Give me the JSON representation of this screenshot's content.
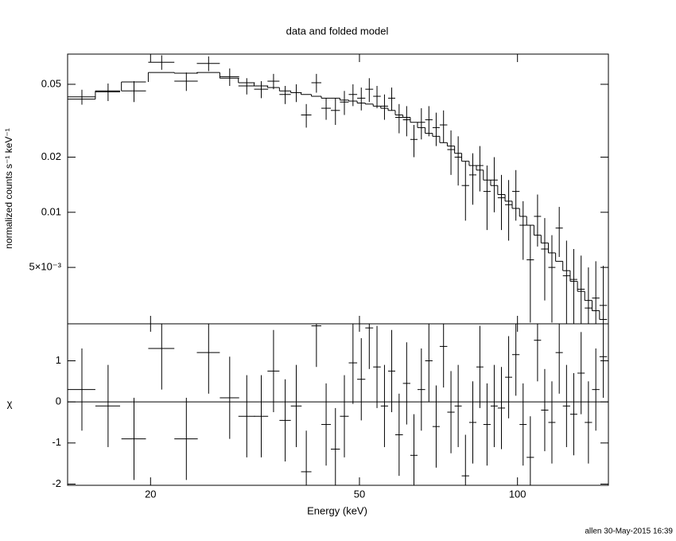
{
  "chart_data": [
    {
      "type": "errorbar",
      "title": "data and folded model",
      "ylabel": "normalized counts s⁻¹ keV⁻¹",
      "xscale": "log",
      "yscale": "log",
      "xlim": [
        13.9,
        149
      ],
      "ylim": [
        0.00246,
        0.0731
      ],
      "yticks": [
        0.05,
        0.02,
        0.01,
        {
          "value": 0.005,
          "label": "5×10⁻³"
        }
      ],
      "color": "#000000",
      "model_color": "#000000",
      "x": [
        14.8,
        16.6,
        18.6,
        21.0,
        23.4,
        25.8,
        28.3,
        30.5,
        32.5,
        34.3,
        36.1,
        37.9,
        39.6,
        41.4,
        43.2,
        45.0,
        46.8,
        48.6,
        50.4,
        52.2,
        54.0,
        55.8,
        57.6,
        59.5,
        61.5,
        63.5,
        65.6,
        67.8,
        70.0,
        72.3,
        74.7,
        77.1,
        79.6,
        82.2,
        84.8,
        87.5,
        90.3,
        93.2,
        96.2,
        99.3,
        102.5,
        105.8,
        109.2,
        112.7,
        116.3,
        120.1,
        124.0,
        128.0,
        132.2,
        136.5,
        141.0,
        145.7
      ],
      "xerr": [
        0.9,
        0.9,
        1.0,
        1.2,
        1.2,
        1.3,
        1.2,
        1.1,
        1.0,
        0.9,
        0.9,
        0.9,
        0.9,
        0.9,
        0.9,
        0.9,
        0.9,
        0.9,
        0.9,
        0.9,
        0.9,
        0.9,
        0.9,
        1.0,
        1.0,
        1.0,
        1.1,
        1.1,
        1.1,
        1.2,
        1.2,
        1.2,
        1.3,
        1.3,
        1.3,
        1.4,
        1.4,
        1.5,
        1.5,
        1.6,
        1.6,
        1.7,
        1.7,
        1.8,
        1.8,
        1.9,
        2.0,
        2.0,
        2.1,
        2.2,
        2.3,
        2.4
      ],
      "values": [
        0.0427,
        0.0455,
        0.046,
        0.066,
        0.052,
        0.065,
        0.055,
        0.049,
        0.047,
        0.052,
        0.044,
        0.045,
        0.034,
        0.051,
        0.037,
        0.036,
        0.04,
        0.044,
        0.042,
        0.047,
        0.043,
        0.038,
        0.042,
        0.033,
        0.032,
        0.025,
        0.031,
        0.032,
        0.029,
        0.03,
        0.022,
        0.02,
        0.014,
        0.016,
        0.018,
        0.013,
        0.015,
        0.012,
        0.011,
        0.013,
        0.0085,
        0.0055,
        0.0095,
        0.0063,
        0.005,
        0.0082,
        0.0045,
        0.0043,
        0.0038,
        0.003,
        0.0034,
        0.0031
      ],
      "errors": [
        0.004,
        0.005,
        0.006,
        0.006,
        0.006,
        0.006,
        0.006,
        0.005,
        0.005,
        0.005,
        0.005,
        0.005,
        0.005,
        0.006,
        0.005,
        0.006,
        0.006,
        0.006,
        0.006,
        0.007,
        0.006,
        0.006,
        0.006,
        0.006,
        0.006,
        0.005,
        0.006,
        0.006,
        0.006,
        0.006,
        0.006,
        0.006,
        0.005,
        0.005,
        0.005,
        0.005,
        0.005,
        0.004,
        0.004,
        0.004,
        0.003,
        0.003,
        0.003,
        0.003,
        0.0025,
        0.0025,
        0.0025,
        0.002,
        0.002,
        0.002,
        0.002,
        0.002
      ],
      "model_values": [
        0.0415,
        0.046,
        0.0515,
        0.058,
        0.0575,
        0.058,
        0.054,
        0.051,
        0.049,
        0.048,
        0.046,
        0.045,
        0.044,
        0.043,
        0.042,
        0.042,
        0.041,
        0.0405,
        0.0395,
        0.039,
        0.038,
        0.037,
        0.036,
        0.034,
        0.033,
        0.031,
        0.029,
        0.027,
        0.026,
        0.024,
        0.023,
        0.021,
        0.019,
        0.018,
        0.017,
        0.015,
        0.014,
        0.0125,
        0.0115,
        0.0105,
        0.0095,
        0.0085,
        0.0075,
        0.0068,
        0.006,
        0.0054,
        0.0048,
        0.0042,
        0.0037,
        0.0033,
        0.0029,
        0.0026
      ]
    },
    {
      "type": "residual",
      "xlabel": "Energy (keV)",
      "ylabel": "χ",
      "xscale": "log",
      "xlim": [
        13.9,
        149
      ],
      "xticks": [
        20,
        50,
        100
      ],
      "ylim": [
        -2.03,
        1.9
      ],
      "yticks": [
        1,
        0,
        -1,
        -2
      ],
      "color": "#000000",
      "reference_line": {
        "value": 0,
        "color": "#00dd00"
      },
      "values": [
        0.3,
        -0.1,
        -0.9,
        1.3,
        -0.9,
        1.2,
        0.1,
        -0.35,
        -0.35,
        0.75,
        -0.45,
        -0.1,
        -1.7,
        1.85,
        -0.55,
        -1.15,
        -0.35,
        0.95,
        0.55,
        1.8,
        0.85,
        -0.1,
        0.75,
        -0.8,
        0.45,
        -1.3,
        0.3,
        1.0,
        -0.6,
        1.35,
        -0.25,
        -0.1,
        -1.8,
        -0.5,
        0.85,
        -0.55,
        -0.1,
        -0.15,
        0.6,
        1.15,
        -0.55,
        -1.35,
        1.5,
        -0.2,
        -0.5,
        1.2,
        -0.1,
        -0.3,
        0.7,
        -0.5,
        0.3,
        1.1
      ],
      "errors": [
        1,
        1,
        1,
        1,
        1,
        1,
        1,
        1,
        1,
        1,
        1,
        1,
        1,
        1,
        1,
        1,
        1,
        1,
        1,
        1,
        1,
        1,
        1,
        1,
        1,
        1,
        1,
        1,
        1,
        1,
        1,
        1,
        1,
        1,
        1,
        1,
        1,
        1,
        1,
        1,
        1,
        1,
        1,
        1,
        1,
        1,
        1,
        1,
        1,
        1,
        1,
        1
      ]
    }
  ],
  "footer": "allen 30-May-2015 16:39"
}
